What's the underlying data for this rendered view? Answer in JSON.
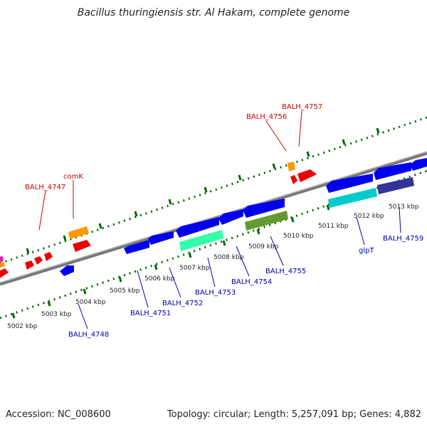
{
  "title": "Bacillus thuringiensis str. Al Hakam, complete genome",
  "footer": {
    "accession": "Accession: NC_008600",
    "summary": "Topology: circular; Length: 5,257,091 bp; Genes: 4,882"
  },
  "scale": {
    "labels": [
      "5002 kbp",
      "5003 kbp",
      "5004 kbp",
      "5005 kbp",
      "5006 kbp",
      "5007 kbp",
      "5008 kbp",
      "5009 kbp",
      "5010 kbp",
      "5011 kbp",
      "5012 kbp",
      "5013 kbp"
    ]
  },
  "gene_labels_forward": [
    "BALH_4747",
    "comK",
    "BALH_4756",
    "BALH_4757"
  ],
  "gene_labels_reverse": [
    "BALH_4748",
    "BALH_4751",
    "BALH_4752",
    "BALH_4753",
    "BALH_4754",
    "BALH_4755",
    "glpT",
    "BALH_4759"
  ],
  "colors": {
    "forward_gene": "#ff0000",
    "reverse_gene": "#0000ee",
    "cds_orange": "#ff9900",
    "cds_teal": "#00cccc",
    "cds_mint": "#33ffaa",
    "cds_olive": "#669933",
    "cds_slate": "#333399",
    "backbone": "#888888",
    "ticks": "#006600",
    "label_forward": "#cc0000",
    "label_reverse": "#0000aa"
  }
}
